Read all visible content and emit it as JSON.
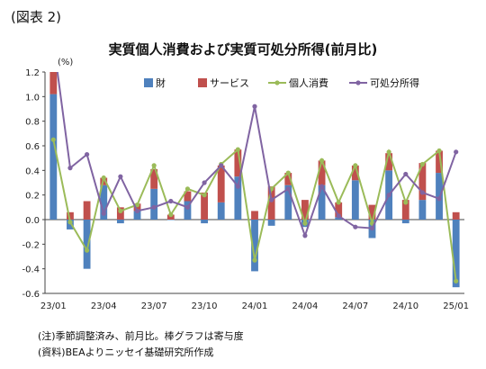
{
  "figure_label": "(図表 2)",
  "notes": [
    "(注)季節調整済み、前月比。棒グラフは寄与度",
    "(資料)BEAよりニッセイ基礎研究所作成"
  ],
  "colors": {
    "goods": "#4f81bd",
    "services": "#c0504d",
    "consumption": "#9bbb59",
    "income": "#8064a2"
  },
  "chart_data": {
    "type": "bar",
    "title": "実質個人消費および実質可処分所得(前月比)",
    "unit_label": "(%)",
    "xlabel": "",
    "ylabel": "",
    "ylim": [
      -0.6,
      1.2
    ],
    "yticks": [
      -0.6,
      -0.4,
      -0.2,
      0.0,
      0.2,
      0.4,
      0.6,
      0.8,
      1.0,
      1.2
    ],
    "ytick_labels": [
      "-0.6",
      "-0.4",
      "-0.2",
      "0.0",
      "0.2",
      "0.4",
      "0.6",
      "0.8",
      "1.0",
      "1.2"
    ],
    "grid": false,
    "legend_position": "top-right",
    "categories": [
      "23/01",
      "23/02",
      "23/03",
      "23/04",
      "23/05",
      "23/06",
      "23/07",
      "23/08",
      "23/09",
      "23/10",
      "23/11",
      "23/12",
      "24/01",
      "24/02",
      "24/03",
      "24/04",
      "24/05",
      "24/06",
      "24/07",
      "24/08",
      "24/09",
      "24/10",
      "24/11",
      "24/12",
      "25/01"
    ],
    "x_tick_labels": [
      "23/01",
      "23/04",
      "23/07",
      "23/10",
      "24/01",
      "24/04",
      "24/07",
      "24/10",
      "25/01"
    ],
    "series": [
      {
        "name": "財",
        "kind": "bar",
        "values": [
          1.02,
          -0.08,
          -0.4,
          0.28,
          -0.03,
          0.07,
          0.25,
          0.0,
          0.15,
          -0.03,
          0.14,
          0.35,
          -0.42,
          -0.05,
          0.28,
          -0.06,
          0.28,
          0.02,
          0.32,
          -0.15,
          0.4,
          -0.03,
          0.16,
          0.38,
          -0.55
        ]
      },
      {
        "name": "サービス",
        "kind": "bar",
        "values": [
          0.3,
          0.06,
          0.15,
          0.06,
          0.1,
          0.06,
          0.16,
          0.04,
          0.08,
          0.22,
          0.3,
          0.22,
          0.07,
          0.27,
          0.1,
          0.16,
          0.2,
          0.12,
          0.12,
          0.12,
          0.14,
          0.16,
          0.3,
          0.18,
          0.06
        ]
      },
      {
        "name": "個人消費",
        "kind": "line",
        "values": [
          0.65,
          -0.02,
          -0.25,
          0.34,
          0.07,
          0.12,
          0.44,
          0.04,
          0.25,
          0.2,
          0.45,
          0.57,
          -0.33,
          0.25,
          0.38,
          -0.03,
          0.48,
          0.14,
          0.44,
          -0.03,
          0.55,
          0.14,
          0.45,
          0.56,
          -0.5
        ]
      },
      {
        "name": "可処分所得",
        "kind": "line",
        "values": [
          1.45,
          0.42,
          0.53,
          0.05,
          0.35,
          0.07,
          0.1,
          0.15,
          0.1,
          0.3,
          0.44,
          0.27,
          0.92,
          0.16,
          0.25,
          -0.13,
          0.27,
          0.03,
          -0.06,
          -0.07,
          0.2,
          0.37,
          0.22,
          0.17,
          0.55
        ]
      }
    ]
  }
}
